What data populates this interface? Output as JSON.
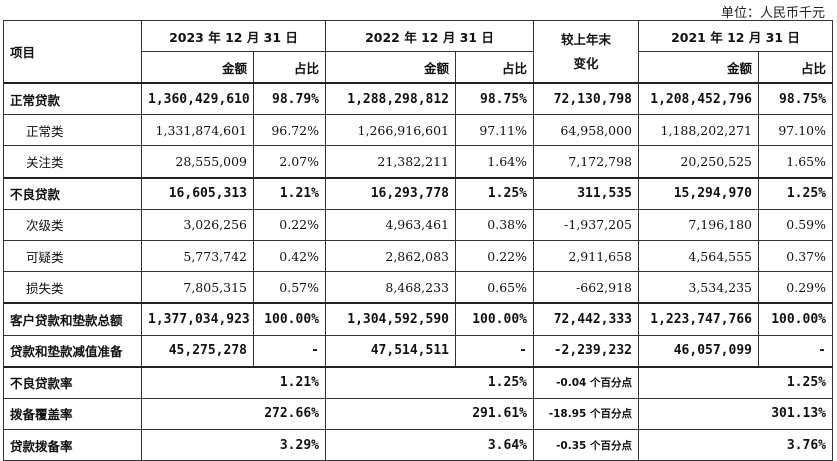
{
  "unit": "单位：人民币千元",
  "header": {
    "item": "项目",
    "periods": [
      "2023 年 12 月 31 日",
      "2022 年 12 月 31 日",
      "2021 年 12 月 31 日"
    ],
    "amount": "金额",
    "share": "占比",
    "change_line1": "较上年末",
    "change_line2": "变化"
  },
  "rows": [
    {
      "label": "正常贷款",
      "a23": "1,360,429,610",
      "s23": "98.79%",
      "a22": "1,288,298,812",
      "s22": "98.75%",
      "chg": "72,130,798",
      "a21": "1,208,452,796",
      "s21": "98.75%"
    },
    {
      "label": "正常类",
      "a23": "1,331,874,601",
      "s23": "96.72%",
      "a22": "1,266,916,601",
      "s22": "97.11%",
      "chg": "64,958,000",
      "a21": "1,188,202,271",
      "s21": "97.10%"
    },
    {
      "label": "关注类",
      "a23": "28,555,009",
      "s23": "2.07%",
      "a22": "21,382,211",
      "s22": "1.64%",
      "chg": "7,172,798",
      "a21": "20,250,525",
      "s21": "1.65%"
    },
    {
      "label": "不良贷款",
      "a23": "16,605,313",
      "s23": "1.21%",
      "a22": "16,293,778",
      "s22": "1.25%",
      "chg": "311,535",
      "a21": "15,294,970",
      "s21": "1.25%"
    },
    {
      "label": "次级类",
      "a23": "3,026,256",
      "s23": "0.22%",
      "a22": "4,963,461",
      "s22": "0.38%",
      "chg": "-1,937,205",
      "a21": "7,196,180",
      "s21": "0.59%"
    },
    {
      "label": "可疑类",
      "a23": "5,773,742",
      "s23": "0.42%",
      "a22": "2,862,083",
      "s22": "0.22%",
      "chg": "2,911,658",
      "a21": "4,564,555",
      "s21": "0.37%"
    },
    {
      "label": "损失类",
      "a23": "7,805,315",
      "s23": "0.57%",
      "a22": "8,468,233",
      "s22": "0.65%",
      "chg": "-662,918",
      "a21": "3,534,235",
      "s21": "0.29%"
    },
    {
      "label": "客户贷款和垫款总额",
      "a23": "1,377,034,923",
      "s23": "100.00%",
      "a22": "1,304,592,590",
      "s22": "100.00%",
      "chg": "72,442,333",
      "a21": "1,223,747,766",
      "s21": "100.00%"
    },
    {
      "label": "贷款和垫款减值准备",
      "a23": "45,275,278",
      "s23": "-",
      "a22": "47,514,511",
      "s22": "-",
      "chg": "-2,239,232",
      "a21": "46,057,099",
      "s21": "-"
    }
  ],
  "ratios": [
    {
      "label": "不良贷款率",
      "v23": "1.21%",
      "v22": "1.25%",
      "chg": "-0.04 个百分点",
      "v21": "1.25%"
    },
    {
      "label": "拨备覆盖率",
      "v23": "272.66%",
      "v22": "291.61%",
      "chg": "-18.95 个百分点",
      "v21": "301.13%"
    },
    {
      "label": "贷款拨备率",
      "v23": "3.29%",
      "v22": "3.64%",
      "chg": "-0.35 个百分点",
      "v21": "3.76%"
    }
  ]
}
